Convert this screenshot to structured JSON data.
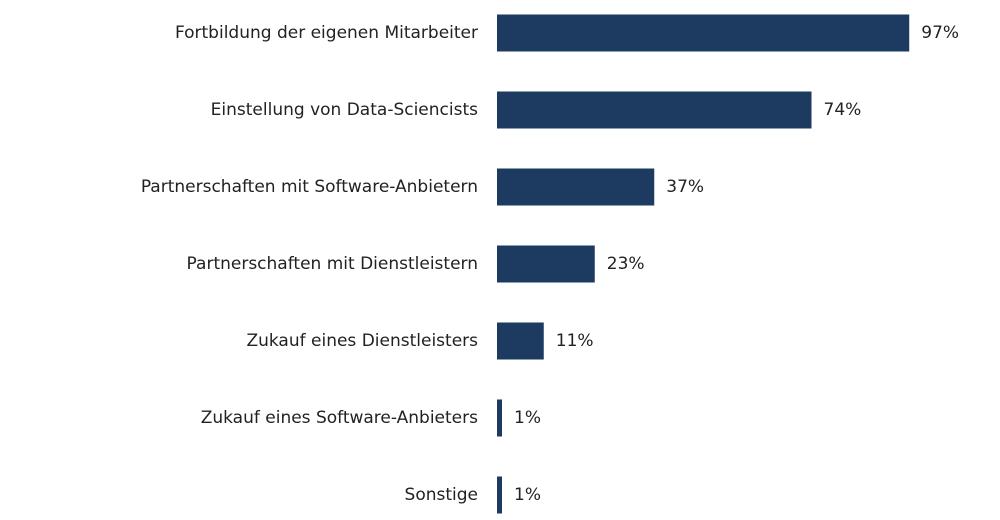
{
  "chart_data": {
    "type": "bar",
    "orientation": "horizontal",
    "categories": [
      "Fortbildung der eigenen Mitarbeiter",
      "Einstellung von Data-Sciencists",
      "Partnerschaften mit Software-Anbietern",
      "Partnerschaften mit Dienstleistern",
      "Zukauf eines Dienstleisters",
      "Zukauf eines Software-Anbieters",
      "Sonstige"
    ],
    "values": [
      97,
      74,
      37,
      23,
      11,
      1,
      1
    ],
    "value_labels": [
      "97%",
      "74%",
      "37%",
      "23%",
      "11%",
      "1%",
      "1%"
    ],
    "unit": "%",
    "xlim": [
      0,
      100
    ],
    "grid": false,
    "legend": "none",
    "colors": {
      "bar": "#1d3a60",
      "text": "#222222"
    }
  }
}
